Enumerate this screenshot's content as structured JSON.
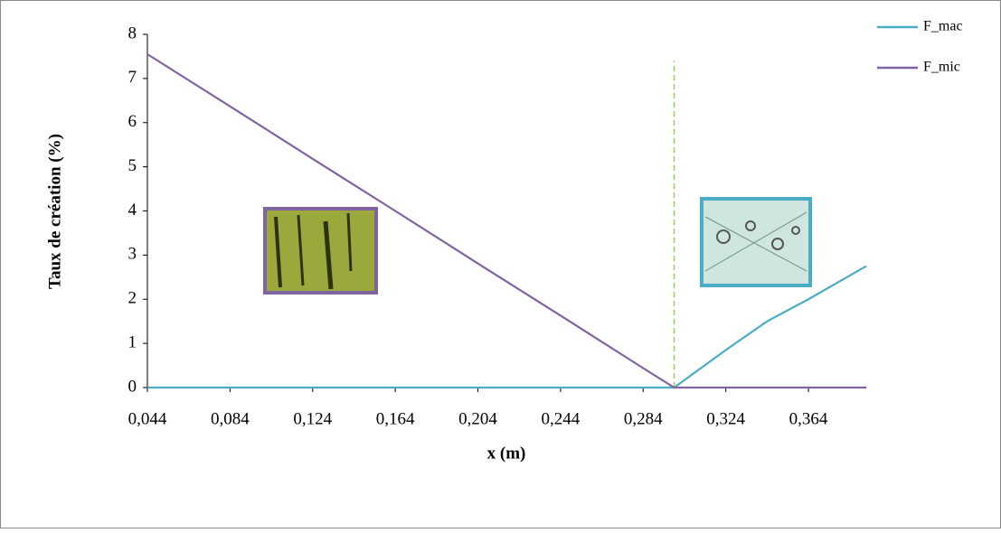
{
  "chart_data": {
    "type": "line",
    "x_label": "x (m)",
    "y_label": "Taux de création (%)",
    "x": [
      0.044,
      0.084,
      0.124,
      0.164,
      0.204,
      0.244,
      0.284,
      0.299,
      0.324,
      0.344,
      0.364,
      0.392
    ],
    "series": [
      {
        "name": "F_mac",
        "color": "#4bacc6",
        "values": [
          0,
          0,
          0,
          0,
          0,
          0,
          0,
          0,
          0.85,
          1.5,
          2.0,
          2.75
        ]
      },
      {
        "name": "F_mic",
        "color": "#8064a2",
        "values": [
          7.55,
          6.37,
          5.18,
          4.0,
          2.81,
          1.63,
          0.44,
          0,
          0,
          0,
          0,
          0
        ]
      }
    ],
    "xlim": [
      0.044,
      0.392
    ],
    "xticks": [
      {
        "value": 0.044,
        "label": "0,044"
      },
      {
        "value": 0.084,
        "label": "0,084"
      },
      {
        "value": 0.124,
        "label": "0,124"
      },
      {
        "value": 0.164,
        "label": "0,164"
      },
      {
        "value": 0.204,
        "label": "0,204"
      },
      {
        "value": 0.244,
        "label": "0,244"
      },
      {
        "value": 0.284,
        "label": "0,284"
      },
      {
        "value": 0.324,
        "label": "0,324"
      },
      {
        "value": 0.364,
        "label": "0,364"
      }
    ],
    "ylim": [
      0,
      8
    ],
    "yticks": [
      0,
      1,
      2,
      3,
      4,
      5,
      6,
      7,
      8
    ],
    "vline": {
      "x": 0.299,
      "y": 7.4,
      "color": "#92d050"
    },
    "legend": "top-right"
  }
}
